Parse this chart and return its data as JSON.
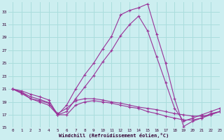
{
  "title": "",
  "xlabel": "Windchill (Refroidissement éolien,°C)",
  "ylabel": "",
  "background_color": "#cceef0",
  "grid_color": "#aadddd",
  "line_color": "#993399",
  "xlim": [
    -0.5,
    23
  ],
  "ylim": [
    15,
    34.5
  ],
  "yticks": [
    15,
    17,
    19,
    21,
    23,
    25,
    27,
    29,
    31,
    33
  ],
  "xticks": [
    0,
    1,
    2,
    3,
    4,
    5,
    6,
    7,
    8,
    9,
    10,
    11,
    12,
    13,
    14,
    15,
    16,
    17,
    18,
    19,
    20,
    21,
    22,
    23
  ],
  "lines": [
    {
      "x": [
        0,
        1,
        2,
        3,
        4,
        5,
        6,
        7,
        8,
        9,
        10,
        11,
        12,
        13,
        14,
        15,
        16,
        17,
        18,
        19,
        20,
        21,
        22,
        23
      ],
      "y": [
        21,
        20.7,
        20.2,
        19.8,
        19.3,
        17.0,
        18.5,
        21.0,
        23.2,
        25.0,
        27.2,
        29.2,
        32.5,
        33.2,
        33.6,
        34.2,
        29.5,
        25.0,
        19.5,
        15.2,
        16.0,
        16.5,
        17.2,
        17.5
      ]
    },
    {
      "x": [
        0,
        1,
        2,
        3,
        4,
        5,
        6,
        7,
        8,
        9,
        10,
        11,
        12,
        13,
        14,
        15,
        16,
        17,
        18,
        19,
        20,
        21,
        22,
        23
      ],
      "y": [
        21,
        20.5,
        19.8,
        19.4,
        18.9,
        17.0,
        17.5,
        19.5,
        21.3,
        23.1,
        25.2,
        27.0,
        29.3,
        31.0,
        32.3,
        30.0,
        26.0,
        22.0,
        18.0,
        16.0,
        16.5,
        17.0,
        17.5,
        18.0
      ]
    },
    {
      "x": [
        0,
        1,
        2,
        3,
        4,
        5,
        6,
        7,
        8,
        9,
        10,
        11,
        12,
        13,
        14,
        15,
        16,
        17,
        18,
        19,
        20,
        21,
        22,
        23
      ],
      "y": [
        21,
        20.5,
        19.5,
        19.2,
        18.8,
        17.2,
        18.0,
        19.2,
        19.5,
        19.5,
        19.3,
        19.0,
        18.8,
        18.5,
        18.2,
        18.0,
        17.8,
        17.5,
        17.2,
        17.0,
        16.8,
        16.8,
        17.0,
        17.5
      ]
    },
    {
      "x": [
        0,
        1,
        2,
        3,
        4,
        5,
        6,
        7,
        8,
        9,
        10,
        11,
        12,
        13,
        14,
        15,
        16,
        17,
        18,
        19,
        20,
        21,
        22,
        23
      ],
      "y": [
        21,
        20.3,
        19.5,
        19.0,
        18.5,
        17.0,
        17.0,
        18.5,
        19.0,
        19.2,
        19.0,
        18.8,
        18.5,
        18.2,
        18.0,
        17.5,
        17.2,
        16.8,
        16.5,
        16.2,
        16.2,
        16.5,
        17.0,
        17.5
      ]
    }
  ]
}
